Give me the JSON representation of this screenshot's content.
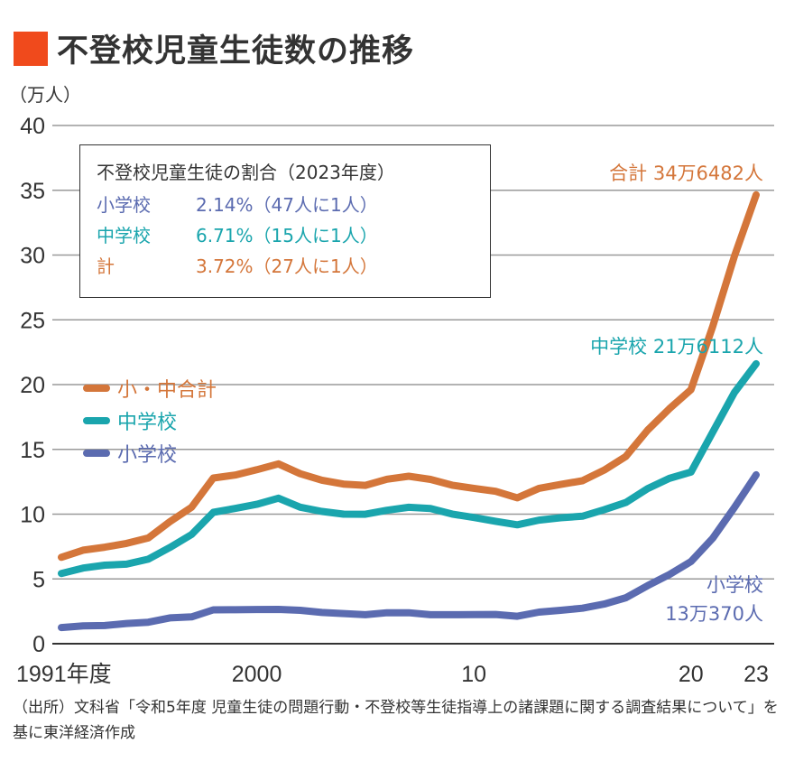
{
  "header": {
    "title": "不登校児童生徒数の推移",
    "accent_color": "#f04a1c"
  },
  "info_box": {
    "title": "不登校児童生徒の割合（2023年度）",
    "rows": [
      {
        "label": "小学校",
        "value": "2.14%（47人に1人）",
        "color": "#5b6bb0"
      },
      {
        "label": "中学校",
        "value": "6.71%（15人に1人）",
        "color": "#1aa5ad"
      },
      {
        "label": "計",
        "value": "3.72%（27人に1人）",
        "color": "#d4763a"
      }
    ]
  },
  "annotations": {
    "total": "合計 34万6482人",
    "junior": "中学校 21万6112人",
    "elementary_line1": "小学校",
    "elementary_line2": "13万370人"
  },
  "footer": {
    "source": "（出所）文科省「令和5年度 児童生徒の問題行動・不登校等生徒指導上の諸課題に関する調査結果について」を基に東洋経済作成"
  },
  "chart_data": {
    "type": "line",
    "title": "不登校児童生徒数の推移",
    "xlabel": "",
    "ylabel": "（万人）",
    "ylim": [
      0,
      40
    ],
    "xlim": [
      1991,
      2023
    ],
    "grid": true,
    "legend_position": "left-middle",
    "yticks": [
      0,
      5,
      10,
      15,
      20,
      25,
      30,
      35,
      40
    ],
    "xtick_labels": [
      {
        "x": 1991,
        "label": "1991年度"
      },
      {
        "x": 2000,
        "label": "2000"
      },
      {
        "x": 2010,
        "label": "10"
      },
      {
        "x": 2020,
        "label": "20"
      },
      {
        "x": 2023,
        "label": "23"
      }
    ],
    "x": [
      1991,
      1992,
      1993,
      1994,
      1995,
      1996,
      1997,
      1998,
      1999,
      2000,
      2001,
      2002,
      2003,
      2004,
      2005,
      2006,
      2007,
      2008,
      2009,
      2010,
      2011,
      2012,
      2013,
      2014,
      2015,
      2016,
      2017,
      2018,
      2019,
      2020,
      2021,
      2022,
      2023
    ],
    "series": [
      {
        "name": "小・中合計",
        "color": "#d4763a",
        "values": [
          6.67,
          7.22,
          7.45,
          7.74,
          8.16,
          9.42,
          10.54,
          12.79,
          13.02,
          13.43,
          13.88,
          13.12,
          12.62,
          12.32,
          12.22,
          12.7,
          12.93,
          12.68,
          12.24,
          11.99,
          11.76,
          11.26,
          11.99,
          12.29,
          12.58,
          13.4,
          14.45,
          16.48,
          18.13,
          19.61,
          24.49,
          29.9,
          34.65
        ]
      },
      {
        "name": "中学校",
        "color": "#1aa5ad",
        "values": [
          5.42,
          5.84,
          6.06,
          6.14,
          6.52,
          7.43,
          8.43,
          10.14,
          10.44,
          10.76,
          11.23,
          10.54,
          10.21,
          10.0,
          9.99,
          10.3,
          10.53,
          10.43,
          10.01,
          9.74,
          9.45,
          9.18,
          9.54,
          9.72,
          9.84,
          10.34,
          10.9,
          11.97,
          12.76,
          13.25,
          16.33,
          19.39,
          21.61
        ]
      },
      {
        "name": "小学校",
        "color": "#5b6bb0",
        "values": [
          1.25,
          1.38,
          1.4,
          1.56,
          1.66,
          1.99,
          2.07,
          2.61,
          2.62,
          2.64,
          2.65,
          2.58,
          2.41,
          2.33,
          2.24,
          2.39,
          2.39,
          2.24,
          2.24,
          2.25,
          2.26,
          2.12,
          2.44,
          2.58,
          2.74,
          3.06,
          3.55,
          4.48,
          5.34,
          6.34,
          8.14,
          10.51,
          13.04
        ]
      }
    ]
  }
}
